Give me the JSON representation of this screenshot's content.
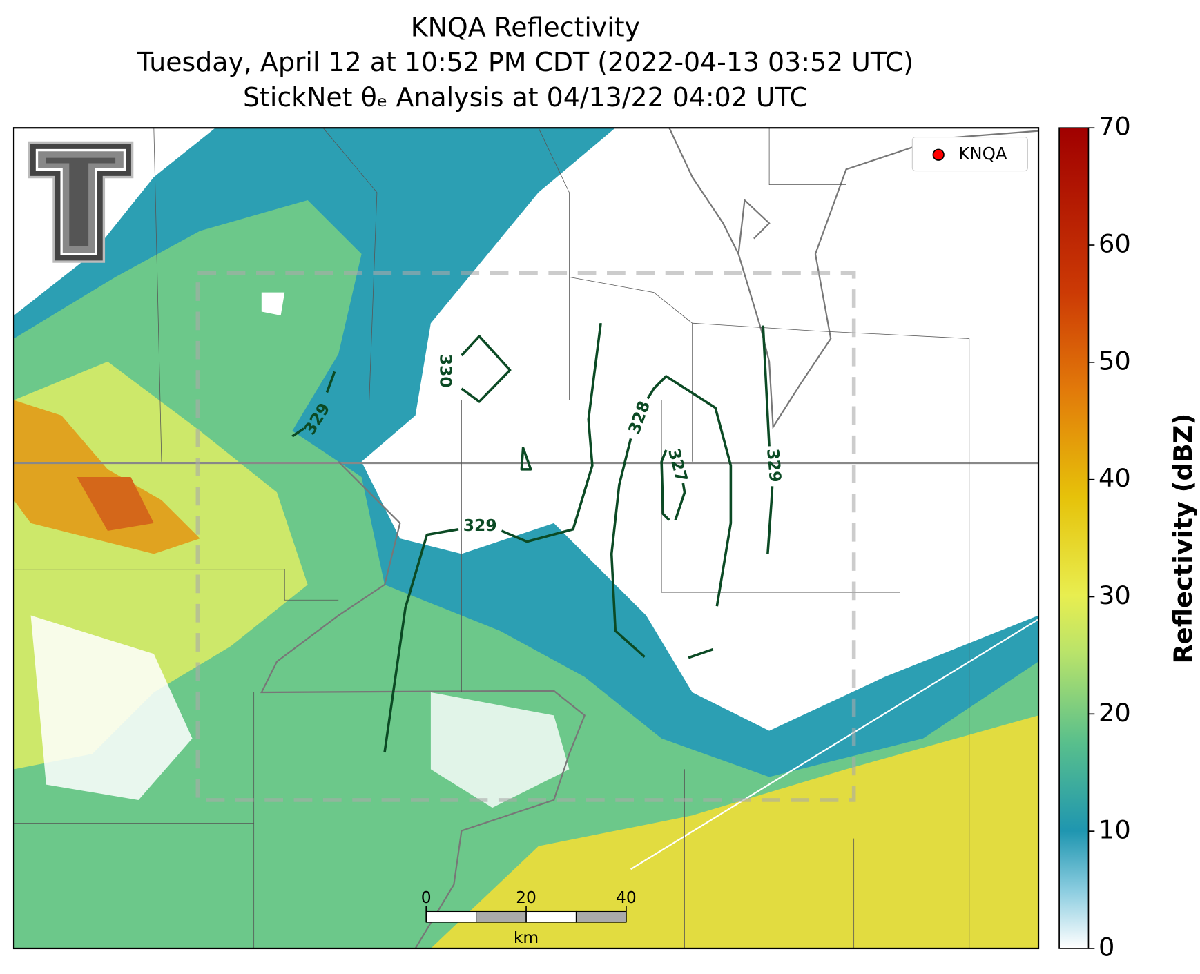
{
  "map": {
    "title_lines": [
      "KNQA Reflectivity",
      "Tuesday, April 12 at 10:52 PM CDT (2022-04-13 03:52 UTC)",
      "StickNet θₑ Analysis at 04/13/22 04:02 UTC"
    ],
    "legend": {
      "label": "KNQA",
      "color": "#ff0000"
    },
    "colorbar": {
      "label": "Reflectivity (dBZ)",
      "lim": [
        0,
        70
      ],
      "ticks": [
        0,
        10,
        20,
        30,
        40,
        50,
        60,
        70
      ]
    },
    "scale_bar": {
      "ticks": [
        0,
        20,
        40
      ],
      "unit": "km"
    },
    "contours": [
      {
        "level": 330
      },
      {
        "level": 329
      },
      {
        "level": 329
      },
      {
        "level": 328
      },
      {
        "level": 327
      },
      {
        "level": 329
      }
    ]
  }
}
